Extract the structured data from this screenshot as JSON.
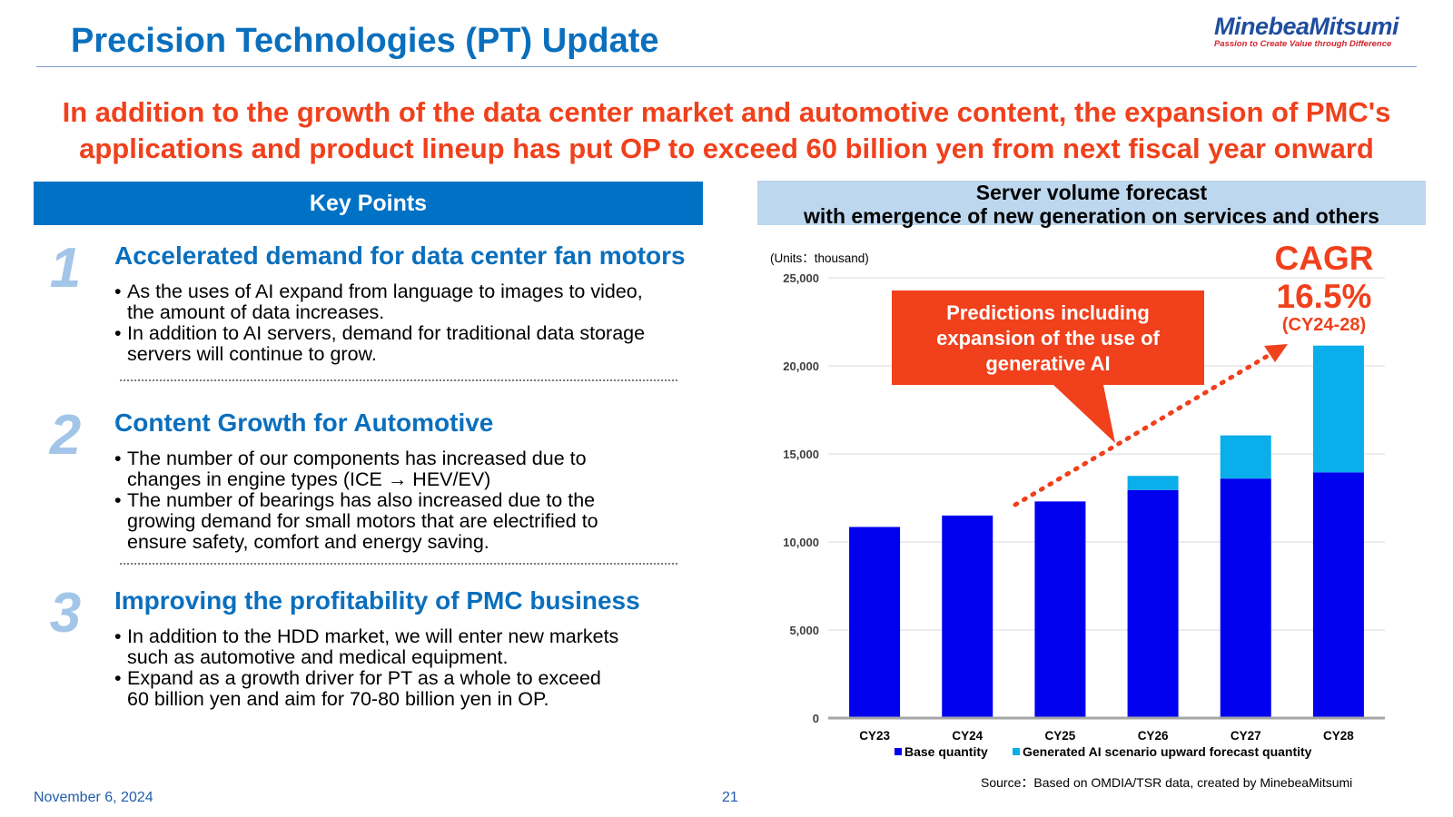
{
  "header": {
    "title": "Precision Technologies (PT) Update",
    "logo_name": "MinebeaMitsumi",
    "logo_tagline": "Passion to Create Value through Difference"
  },
  "headline": {
    "line1": "In addition to the growth of the data center market and automotive content, the expansion of PMC's",
    "line2": "applications and product lineup has put OP to exceed 60 billion yen from next fiscal year onward"
  },
  "key_points": {
    "header": "Key Points",
    "items": [
      {
        "number": "1",
        "title": "Accelerated demand for data center fan motors",
        "bullets": [
          [
            "As the uses of AI expand from language to images to video,",
            "the amount of data increases."
          ],
          [
            "In addition to AI servers, demand for traditional data storage",
            "servers will continue to grow."
          ]
        ]
      },
      {
        "number": "2",
        "title": "Content Growth for Automotive",
        "bullets": [
          [
            "The number of our components has increased due to",
            "changes in engine types (ICE → HEV/EV)"
          ],
          [
            "The number of bearings has also increased due to the",
            "growing demand for small motors that are electrified to",
            "ensure safety, comfort and energy saving."
          ]
        ]
      },
      {
        "number": "3",
        "title": "Improving the profitability of PMC business",
        "bullets": [
          [
            "In addition to the HDD market, we will enter new markets",
            "such as automotive and medical equipment."
          ],
          [
            "Expand as a growth driver for PT as a whole to exceed",
            "60 billion yen and aim for 70-80 billion yen in OP."
          ]
        ]
      }
    ]
  },
  "chart_panel": {
    "header_line1": "Server volume forecast",
    "header_line2": "with emergence of new generation on services and others"
  },
  "chart_data": {
    "type": "bar",
    "stacked": true,
    "units_label": "(Units：thousand)",
    "categories": [
      "CY23",
      "CY24",
      "CY25",
      "CY26",
      "CY27",
      "CY28"
    ],
    "series": [
      {
        "name": "Base quantity",
        "color": "#0000ee",
        "values": [
          10850,
          11500,
          12300,
          12950,
          13600,
          13950
        ]
      },
      {
        "name": "Generated AI scenario upward forecast quantity",
        "color": "#0aaeeb",
        "values": [
          0,
          0,
          0,
          800,
          2450,
          7200
        ]
      }
    ],
    "ylim": [
      0,
      25000
    ],
    "yticks": [
      0,
      5000,
      10000,
      15000,
      20000,
      25000
    ],
    "ytick_labels": [
      "0",
      "5,000",
      "10,000",
      "15,000",
      "20,000",
      "25,000"
    ],
    "grid": true,
    "legend_position": "bottom",
    "cagr_label": "CAGR",
    "cagr_value": "16.5%",
    "cagr_period": "(CY24-28)",
    "callout_lines": [
      "Predictions including",
      "expansion of the use of",
      "generative AI"
    ],
    "source": "Source：Based on OMDIA/TSR data, created by MinebeaMitsumi"
  },
  "footer": {
    "date": "November 6, 2024",
    "page": "21"
  }
}
